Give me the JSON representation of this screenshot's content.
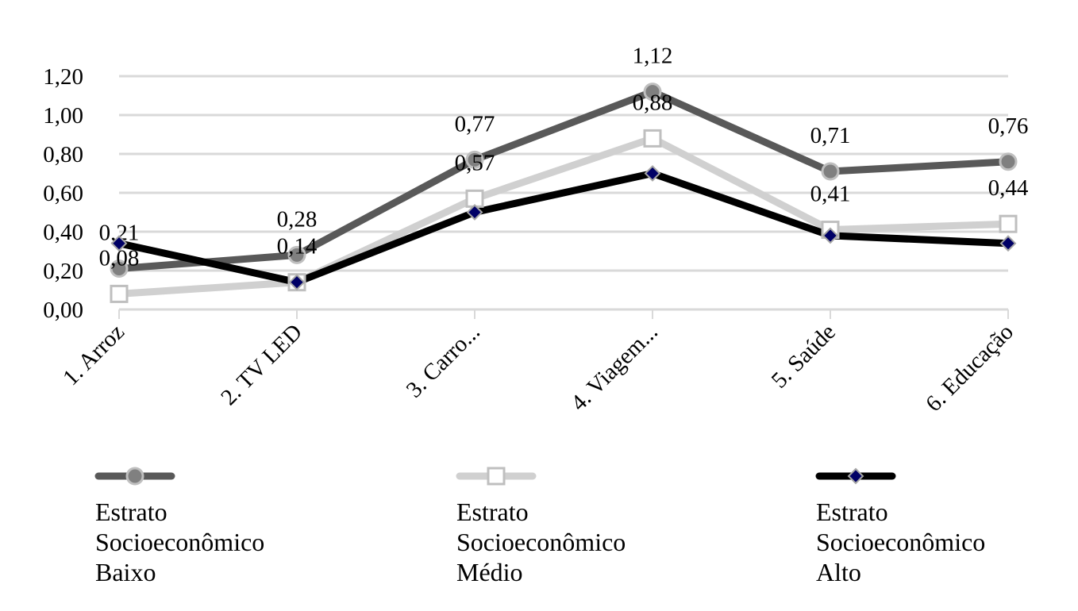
{
  "chart_data": {
    "type": "line",
    "categories": [
      "1. Arroz",
      "2. TV LED",
      "3. Carro...",
      "4. Viagem...",
      "5. Saúde",
      "6. Educação"
    ],
    "series": [
      {
        "name": "Estrato Socioeconômico Baixo",
        "color": "#595959",
        "marker": "circle",
        "values": [
          0.21,
          0.28,
          0.77,
          1.12,
          0.71,
          0.76
        ],
        "value_labels": [
          "0,21",
          "0,28",
          "0,77",
          "1,12",
          "0,71",
          "0,76"
        ]
      },
      {
        "name": "Estrato Socioeconômico Médio",
        "color": "#d0d0d0",
        "marker": "square",
        "values": [
          0.08,
          0.14,
          0.57,
          0.88,
          0.41,
          0.44
        ],
        "value_labels": [
          "0,08",
          "0,14",
          "0,57",
          "0,88",
          "0,41",
          "0,44"
        ]
      },
      {
        "name": "Estrato Socioeconômico Alto",
        "color": "#000000",
        "marker": "diamond",
        "values": [
          0.34,
          0.14,
          0.5,
          0.7,
          0.38,
          0.34
        ]
      }
    ],
    "ylim": [
      0,
      1.2
    ],
    "yticks": [
      {
        "value": 0,
        "label": "0,00"
      },
      {
        "value": 0.2,
        "label": "0,20"
      },
      {
        "value": 0.4,
        "label": "0,40"
      },
      {
        "value": 0.6,
        "label": "0,60"
      },
      {
        "value": 0.8,
        "label": "0,80"
      },
      {
        "value": 1.0,
        "label": "1,00"
      },
      {
        "value": 1.2,
        "label": "1,20"
      }
    ],
    "grid": true
  }
}
